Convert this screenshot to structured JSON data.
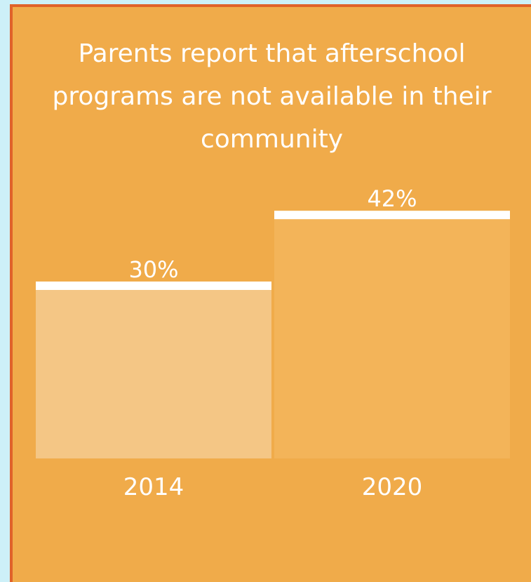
{
  "colors": {
    "background": "#cdf0f8",
    "card": "#f0ab4a",
    "border": "#e0622a",
    "bar_2014": "#f4c685",
    "bar_2020": "#f3b459",
    "bar_cap": "#ffffff",
    "text": "#ffffff"
  },
  "chart_data": {
    "type": "bar",
    "title": "Parents report that afterschool programs are not available in their community",
    "categories": [
      "2014",
      "2020"
    ],
    "values": [
      30,
      42
    ],
    "value_labels": [
      "30%",
      "42%"
    ],
    "unit": "%",
    "xlabel": "",
    "ylabel": "",
    "grid": false,
    "legend": "none"
  }
}
